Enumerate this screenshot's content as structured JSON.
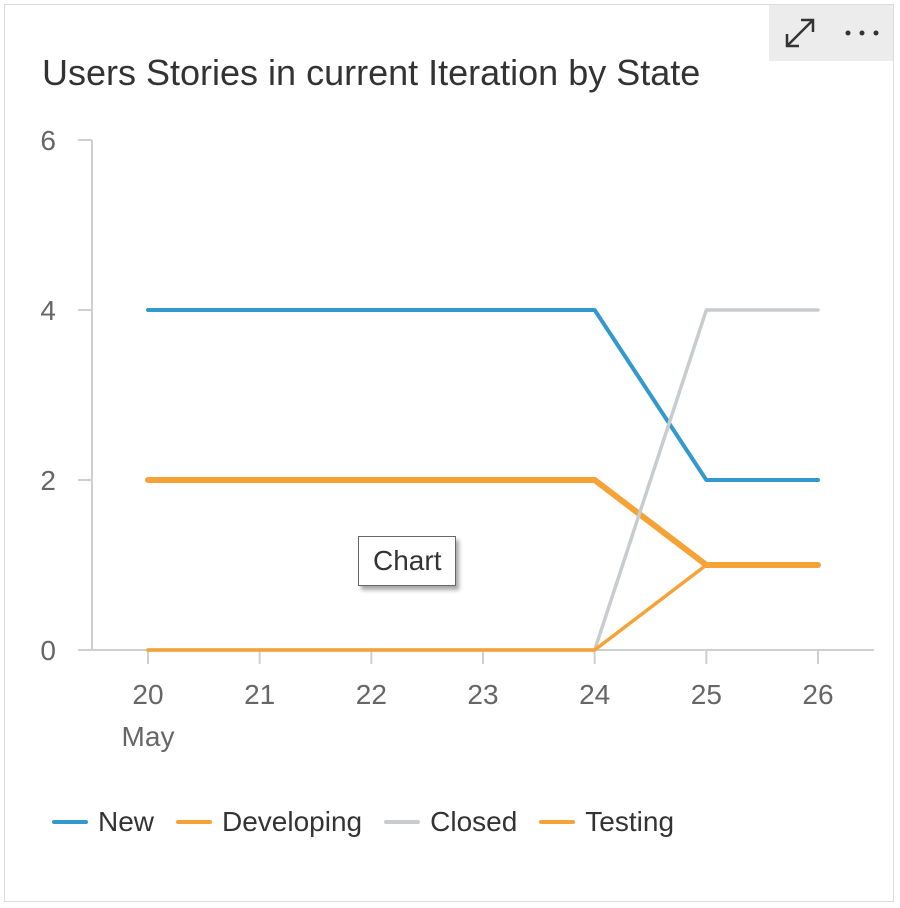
{
  "toolbar": {
    "expand_icon": "expand-icon",
    "more_icon": "more-options-icon"
  },
  "tooltip": {
    "text": "Chart"
  },
  "chart_data": {
    "type": "line",
    "title": "Users Stories in current Iteration by State",
    "x": [
      "20",
      "21",
      "22",
      "23",
      "24",
      "25",
      "26"
    ],
    "x_sublabels": [
      "May",
      "",
      "",
      "",
      "",
      "",
      ""
    ],
    "xlabel": "",
    "ylabel": "",
    "ylim": [
      0,
      6
    ],
    "yticks": [
      0,
      2,
      4,
      6
    ],
    "grid": false,
    "legend_position": "bottom-left",
    "series": [
      {
        "name": "New",
        "color": "#3399cc",
        "values": [
          4,
          4,
          4,
          4,
          4,
          2,
          2
        ]
      },
      {
        "name": "Developing",
        "color": "#f5a236",
        "values": [
          2,
          2,
          2,
          2,
          2,
          1,
          1
        ]
      },
      {
        "name": "Closed",
        "color": "#c9cccf",
        "values": [
          0,
          0,
          0,
          0,
          0,
          4,
          4
        ]
      },
      {
        "name": "Testing",
        "color": "#f5a236",
        "values": [
          0,
          0,
          0,
          0,
          0,
          1,
          1
        ]
      }
    ]
  }
}
